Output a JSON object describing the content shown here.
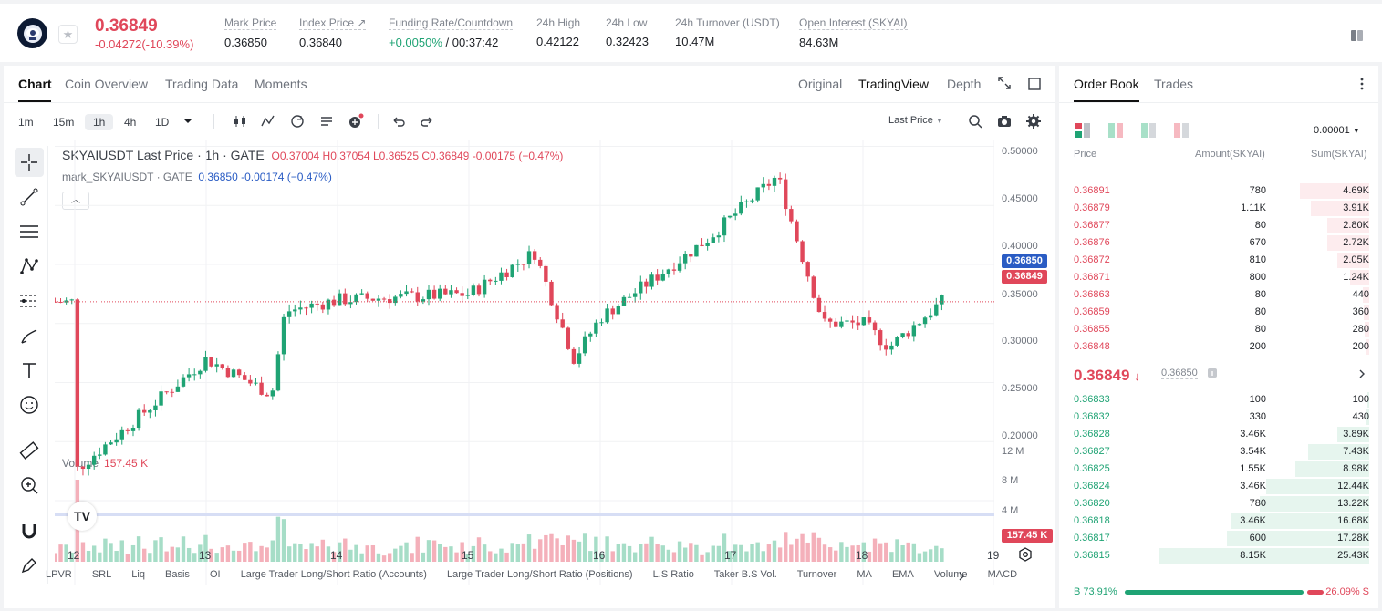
{
  "ticker": {
    "last_price": "0.36849",
    "change": "-0.04272(-10.39%)",
    "stats": [
      {
        "label": "Mark Price",
        "value": "0.36850"
      },
      {
        "label": "Index Price ↗",
        "value": "0.36840"
      },
      {
        "label": "Funding Rate/Countdown",
        "value_pos": "+0.0050%",
        "value_rest": " / 00:37:42"
      },
      {
        "label": "24h High",
        "value": "0.42122"
      },
      {
        "label": "24h Low",
        "value": "0.32423"
      },
      {
        "label": "24h Turnover (USDT)",
        "value": "10.47M"
      },
      {
        "label": "Open Interest (SKYAI)",
        "value": "84.63M"
      }
    ]
  },
  "chart_tabs": [
    "Chart",
    "Coin Overview",
    "Trading Data",
    "Moments"
  ],
  "view_tabs": [
    "Original",
    "TradingView",
    "Depth"
  ],
  "timeframes": [
    "1m",
    "15m",
    "1h",
    "4h",
    "1D"
  ],
  "price_type": "Last Price",
  "legend": {
    "main_prefix": "SKYAIUSDT Last Price · 1h · GATE",
    "ohlc": "O0.37004  H0.37054  L0.36525  C0.36849  -0.00175 (−0.47%)",
    "mark_prefix": "mark_SKYAIUSDT · GATE",
    "mark_values": "0.36850  -0.00174 (−0.47%)"
  },
  "volume_legend": {
    "label": "Volume",
    "value": "157.45 K"
  },
  "price_axis": [
    "0.50000",
    "0.45000",
    "0.40000",
    "0.35000",
    "0.30000",
    "0.25000",
    "0.20000"
  ],
  "volume_axis": [
    "12 M",
    "8 M",
    "4 M"
  ],
  "price_tags": {
    "mark": "0.36850",
    "last": "0.36849",
    "volume": "157.45 K"
  },
  "dates": [
    "12",
    "13",
    "14",
    "15",
    "16",
    "17",
    "18",
    "19"
  ],
  "indicators": [
    "LPVR",
    "SRL",
    "Liq",
    "Basis",
    "OI",
    "Large Trader Long/Short Ratio (Accounts)",
    "Large Trader Long/Short Ratio (Positions)",
    "L.S Ratio",
    "Taker B.S Vol.",
    "Turnover",
    "MA",
    "EMA",
    "Volume",
    "MACD"
  ],
  "chart_data": {
    "type": "candlestick",
    "x_labels": [
      "12",
      "13",
      "14",
      "15",
      "16",
      "17",
      "18",
      "19"
    ],
    "ylim": [
      0.19,
      0.505
    ],
    "key_points": [
      {
        "t": "12",
        "price": 0.225
      },
      {
        "t": "13",
        "price": 0.32
      },
      {
        "t": "13.5",
        "price": 0.29
      },
      {
        "t": "13.6",
        "price": 0.36
      },
      {
        "t": "14",
        "price": 0.37
      },
      {
        "t": "15",
        "price": 0.375
      },
      {
        "t": "15.5",
        "price": 0.41
      },
      {
        "t": "15.8",
        "price": 0.32
      },
      {
        "t": "16",
        "price": 0.355
      },
      {
        "t": "16.8",
        "price": 0.42
      },
      {
        "t": "17.35",
        "price": 0.475
      },
      {
        "t": "17.5",
        "price": 0.42
      },
      {
        "t": "17.7",
        "price": 0.35
      },
      {
        "t": "18",
        "price": 0.35
      },
      {
        "t": "18.2",
        "price": 0.33
      },
      {
        "t": "18.6",
        "price": 0.3685
      }
    ],
    "last_price": 0.36849,
    "mark_price": 0.3685,
    "volume_ylim": [
      0,
      12000000
    ]
  },
  "orderbook": {
    "tabs": [
      "Order Book",
      "Trades"
    ],
    "precision": "0.00001",
    "headers": [
      "Price",
      "Amount(SKYAI)",
      "Sum(SKYAI)"
    ],
    "asks": [
      {
        "price": "0.36891",
        "amount": "780",
        "sum": "4.69K",
        "depth": 0.33
      },
      {
        "price": "0.36879",
        "amount": "1.11K",
        "sum": "3.91K",
        "depth": 0.28
      },
      {
        "price": "0.36877",
        "amount": "80",
        "sum": "2.80K",
        "depth": 0.2
      },
      {
        "price": "0.36876",
        "amount": "670",
        "sum": "2.72K",
        "depth": 0.2
      },
      {
        "price": "0.36872",
        "amount": "810",
        "sum": "2.05K",
        "depth": 0.15
      },
      {
        "price": "0.36871",
        "amount": "800",
        "sum": "1.24K",
        "depth": 0.09
      },
      {
        "price": "0.36863",
        "amount": "80",
        "sum": "440",
        "depth": 0.03
      },
      {
        "price": "0.36859",
        "amount": "80",
        "sum": "360",
        "depth": 0.025
      },
      {
        "price": "0.36855",
        "amount": "80",
        "sum": "280",
        "depth": 0.02
      },
      {
        "price": "0.36848",
        "amount": "200",
        "sum": "200",
        "depth": 0.015
      }
    ],
    "mid_price": "0.36849",
    "mid_arrow": "↓",
    "mid_mark": "0.36850",
    "bids": [
      {
        "price": "0.36833",
        "amount": "100",
        "sum": "100",
        "depth": 0.004
      },
      {
        "price": "0.36832",
        "amount": "330",
        "sum": "430",
        "depth": 0.017
      },
      {
        "price": "0.36828",
        "amount": "3.46K",
        "sum": "3.89K",
        "depth": 0.15
      },
      {
        "price": "0.36827",
        "amount": "3.54K",
        "sum": "7.43K",
        "depth": 0.29
      },
      {
        "price": "0.36825",
        "amount": "1.55K",
        "sum": "8.98K",
        "depth": 0.35
      },
      {
        "price": "0.36824",
        "amount": "3.46K",
        "sum": "12.44K",
        "depth": 0.49
      },
      {
        "price": "0.36820",
        "amount": "780",
        "sum": "13.22K",
        "depth": 0.52
      },
      {
        "price": "0.36818",
        "amount": "3.46K",
        "sum": "16.68K",
        "depth": 0.66
      },
      {
        "price": "0.36817",
        "amount": "600",
        "sum": "17.28K",
        "depth": 0.68
      },
      {
        "price": "0.36815",
        "amount": "8.15K",
        "sum": "25.43K",
        "depth": 1.0
      }
    ],
    "buy_ratio": "B 73.91%",
    "sell_ratio": "26.09% S",
    "buy_fraction": 0.7391
  }
}
